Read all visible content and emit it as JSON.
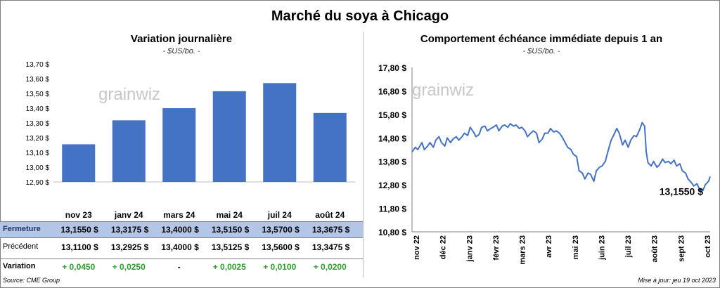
{
  "title": "Marché du soya à Chicago",
  "left": {
    "subtitle": "Variation journalière",
    "unit": "- $US/bo. -",
    "watermark": "grainwiz"
  },
  "right": {
    "subtitle": "Comportement échéance immédiate depuis 1 an",
    "unit": "- $US/bo. -",
    "watermark": "grainwiz",
    "last_value_label": "13,1550 $"
  },
  "table": {
    "rows": [
      {
        "label": "Fermeture",
        "values": [
          "13,1550",
          "13,3175",
          "13,4000",
          "13,5150",
          "13,5700",
          "13,3675"
        ],
        "currency": "$"
      },
      {
        "label": "Précédent",
        "values": [
          "13,1100",
          "13,2925",
          "13,4000",
          "13,5125",
          "13,5600",
          "13,3475"
        ],
        "currency": "$"
      },
      {
        "label": "Variation",
        "values": [
          "+ 0,0450",
          "+ 0,0250",
          "-",
          "+ 0,0025",
          "+ 0,0100",
          "+ 0,0200"
        ]
      }
    ]
  },
  "footer": {
    "source": "Source: CME Group",
    "updated": "Mise à jour: jeu 19 oct 2023"
  },
  "colors": {
    "bar": "#4472c4",
    "line": "#4472c4",
    "positive": "#2e9d2e",
    "highlight_row": "#b4c6e7"
  },
  "chart_data": [
    {
      "type": "bar",
      "categories": [
        "nov 23",
        "janv 24",
        "mars 24",
        "mai 24",
        "juil 24",
        "août 24"
      ],
      "values": [
        13.155,
        13.3175,
        13.4,
        13.515,
        13.57,
        13.3675
      ],
      "ylim": [
        12.9,
        13.7
      ],
      "yticks": [
        12.9,
        13.0,
        13.1,
        13.2,
        13.3,
        13.4,
        13.5,
        13.6,
        13.7
      ],
      "ytick_labels": [
        "12,90 $",
        "13,00 $",
        "13,10 $",
        "13,20 $",
        "13,30 $",
        "13,40 $",
        "13,50 $",
        "13,60 $",
        "13,70 $"
      ],
      "title": "Variation journalière",
      "ylabel": "$US/bo.",
      "grid": false
    },
    {
      "type": "line",
      "x_labels": [
        "nov 22",
        "déc 22",
        "janv 23",
        "févr 23",
        "mars 23",
        "avr 23",
        "mai 23",
        "juin 23",
        "juil 23",
        "août 23",
        "sept 23",
        "oct 23"
      ],
      "x_range": [
        "2022-10-20",
        "2023-10-19"
      ],
      "points": [
        [
          "2022-10-20",
          14.2
        ],
        [
          "2022-10-24",
          14.4
        ],
        [
          "2022-10-27",
          14.3
        ],
        [
          "2022-11-01",
          14.6
        ],
        [
          "2022-11-04",
          14.3
        ],
        [
          "2022-11-08",
          14.45
        ],
        [
          "2022-11-11",
          14.6
        ],
        [
          "2022-11-15",
          14.4
        ],
        [
          "2022-11-18",
          14.7
        ],
        [
          "2022-11-22",
          14.85
        ],
        [
          "2022-11-25",
          14.6
        ],
        [
          "2022-11-29",
          14.45
        ],
        [
          "2022-12-02",
          14.8
        ],
        [
          "2022-12-06",
          14.6
        ],
        [
          "2022-12-09",
          14.75
        ],
        [
          "2022-12-13",
          14.85
        ],
        [
          "2022-12-16",
          14.7
        ],
        [
          "2022-12-20",
          14.85
        ],
        [
          "2022-12-23",
          15.0
        ],
        [
          "2022-12-27",
          14.9
        ],
        [
          "2022-12-30",
          15.25
        ],
        [
          "2023-01-03",
          15.05
        ],
        [
          "2023-01-06",
          14.85
        ],
        [
          "2023-01-10",
          14.95
        ],
        [
          "2023-01-13",
          15.25
        ],
        [
          "2023-01-17",
          15.3
        ],
        [
          "2023-01-20",
          15.1
        ],
        [
          "2023-01-24",
          15.2
        ],
        [
          "2023-01-27",
          15.25
        ],
        [
          "2023-01-31",
          15.35
        ],
        [
          "2023-02-03",
          15.1
        ],
        [
          "2023-02-07",
          15.3
        ],
        [
          "2023-02-10",
          15.35
        ],
        [
          "2023-02-14",
          15.25
        ],
        [
          "2023-02-17",
          15.4
        ],
        [
          "2023-02-21",
          15.3
        ],
        [
          "2023-02-24",
          15.35
        ],
        [
          "2023-02-28",
          15.2
        ],
        [
          "2023-03-03",
          15.25
        ],
        [
          "2023-03-07",
          15.1
        ],
        [
          "2023-03-10",
          14.85
        ],
        [
          "2023-03-14",
          15.0
        ],
        [
          "2023-03-17",
          15.1
        ],
        [
          "2023-03-21",
          15.0
        ],
        [
          "2023-03-24",
          14.6
        ],
        [
          "2023-03-28",
          14.75
        ],
        [
          "2023-03-31",
          15.0
        ],
        [
          "2023-04-04",
          15.0
        ],
        [
          "2023-04-07",
          15.2
        ],
        [
          "2023-04-11",
          15.05
        ],
        [
          "2023-04-14",
          15.1
        ],
        [
          "2023-04-18",
          15.0
        ],
        [
          "2023-04-21",
          14.85
        ],
        [
          "2023-04-25",
          14.6
        ],
        [
          "2023-04-28",
          14.4
        ],
        [
          "2023-05-02",
          14.3
        ],
        [
          "2023-05-05",
          14.1
        ],
        [
          "2023-05-09",
          14.0
        ],
        [
          "2023-05-12",
          13.4
        ],
        [
          "2023-05-16",
          13.3
        ],
        [
          "2023-05-19",
          13.05
        ],
        [
          "2023-05-23",
          13.3
        ],
        [
          "2023-05-26",
          13.25
        ],
        [
          "2023-05-30",
          12.95
        ],
        [
          "2023-06-02",
          13.4
        ],
        [
          "2023-06-06",
          13.55
        ],
        [
          "2023-06-09",
          13.6
        ],
        [
          "2023-06-13",
          13.8
        ],
        [
          "2023-06-16",
          14.2
        ],
        [
          "2023-06-20",
          14.7
        ],
        [
          "2023-06-23",
          14.9
        ],
        [
          "2023-06-27",
          15.2
        ],
        [
          "2023-06-30",
          15.0
        ],
        [
          "2023-07-04",
          14.5
        ],
        [
          "2023-07-07",
          14.7
        ],
        [
          "2023-07-11",
          14.4
        ],
        [
          "2023-07-14",
          14.7
        ],
        [
          "2023-07-18",
          14.9
        ],
        [
          "2023-07-21",
          14.85
        ],
        [
          "2023-07-25",
          15.15
        ],
        [
          "2023-07-28",
          15.45
        ],
        [
          "2023-07-31",
          15.3
        ],
        [
          "2023-08-02",
          14.2
        ],
        [
          "2023-08-04",
          13.75
        ],
        [
          "2023-08-08",
          13.6
        ],
        [
          "2023-08-11",
          13.8
        ],
        [
          "2023-08-15",
          13.55
        ],
        [
          "2023-08-18",
          13.65
        ],
        [
          "2023-08-22",
          13.9
        ],
        [
          "2023-08-25",
          13.75
        ],
        [
          "2023-08-29",
          13.8
        ],
        [
          "2023-09-01",
          13.7
        ],
        [
          "2023-09-05",
          13.85
        ],
        [
          "2023-09-08",
          13.6
        ],
        [
          "2023-09-12",
          13.7
        ],
        [
          "2023-09-15",
          13.4
        ],
        [
          "2023-09-19",
          13.3
        ],
        [
          "2023-09-22",
          13.05
        ],
        [
          "2023-09-26",
          12.9
        ],
        [
          "2023-09-29",
          12.75
        ],
        [
          "2023-10-03",
          12.85
        ],
        [
          "2023-10-06",
          12.6
        ],
        [
          "2023-10-10",
          12.55
        ],
        [
          "2023-10-13",
          12.8
        ],
        [
          "2023-10-17",
          12.95
        ],
        [
          "2023-10-19",
          13.155
        ]
      ],
      "ylim": [
        10.8,
        17.8
      ],
      "yticks": [
        10.8,
        11.8,
        12.8,
        13.8,
        14.8,
        15.8,
        16.8,
        17.8
      ],
      "ytick_labels": [
        "10,80 $",
        "11,80 $",
        "12,80 $",
        "13,80 $",
        "14,80 $",
        "15,80 $",
        "16,80 $",
        "17,80 $"
      ],
      "title": "Comportement échéance immédiate depuis 1 an",
      "ylabel": "$US/bo.",
      "grid": false,
      "annotation": "13,1550 $"
    }
  ]
}
